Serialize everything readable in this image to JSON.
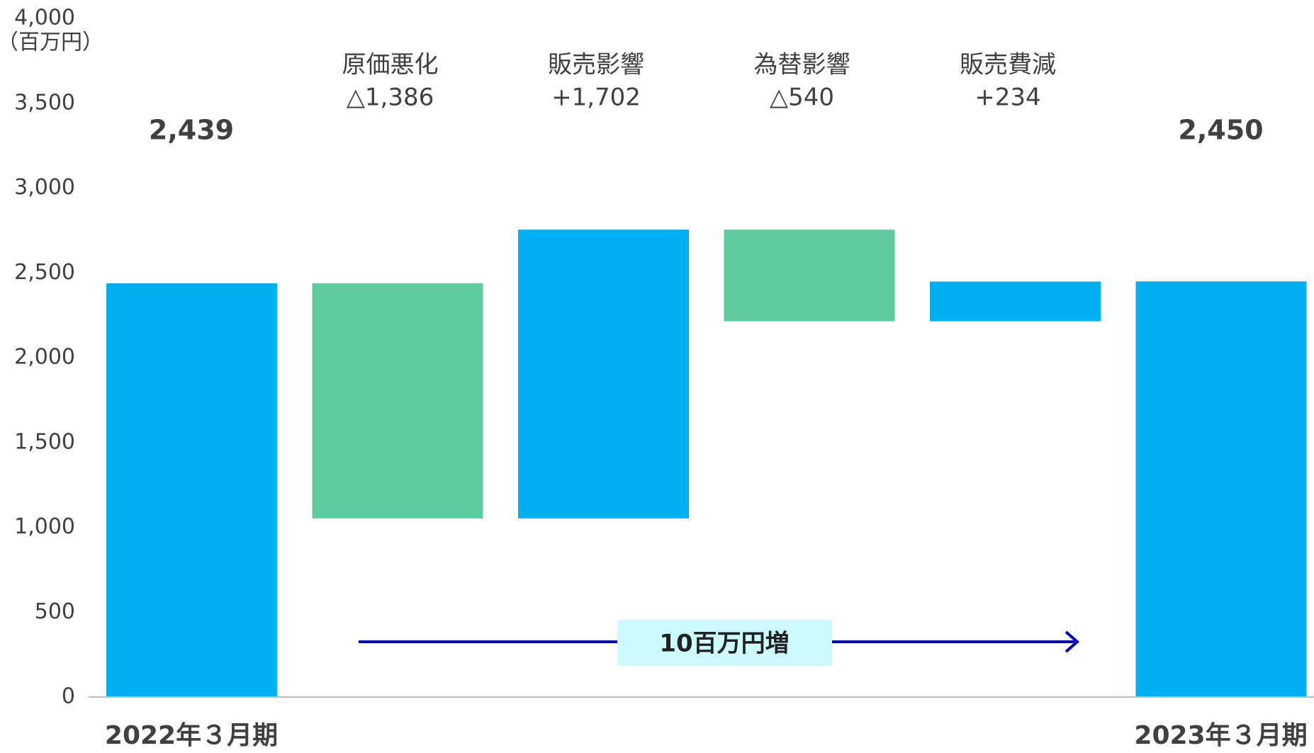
{
  "chart_data": {
    "type": "waterfall",
    "y_unit": "（百万円）",
    "categories": [
      "2022年３月期",
      "原価悪化",
      "販売影響",
      "為替影響",
      "販売費減",
      "2023年３月期"
    ],
    "values": [
      2439,
      -1386,
      1702,
      -540,
      234,
      2450
    ],
    "value_labels": [
      "2,439",
      "△1,386",
      "+1,702",
      "△540",
      "+234",
      "2,450"
    ],
    "measures": [
      "total",
      "relative",
      "relative",
      "relative",
      "relative",
      "total"
    ],
    "colors": {
      "total": "#00b0f0",
      "increase": "#00b0f0",
      "decrease": "#5ecb9e"
    },
    "ylim": [
      0,
      4000
    ],
    "yticks": [
      0,
      500,
      {
        "value": 1000,
        "label": "1,000"
      },
      {
        "value": 1500,
        "label": "1,500"
      },
      {
        "value": 2000,
        "label": "2,000"
      },
      {
        "value": 2500,
        "label": "2,500"
      },
      {
        "value": 3000,
        "label": "3,000"
      },
      {
        "value": 3500,
        "label": "3,500"
      },
      {
        "value": 4000,
        "label": "4,000"
      }
    ],
    "grid": false,
    "annotation": "10百万円増"
  }
}
